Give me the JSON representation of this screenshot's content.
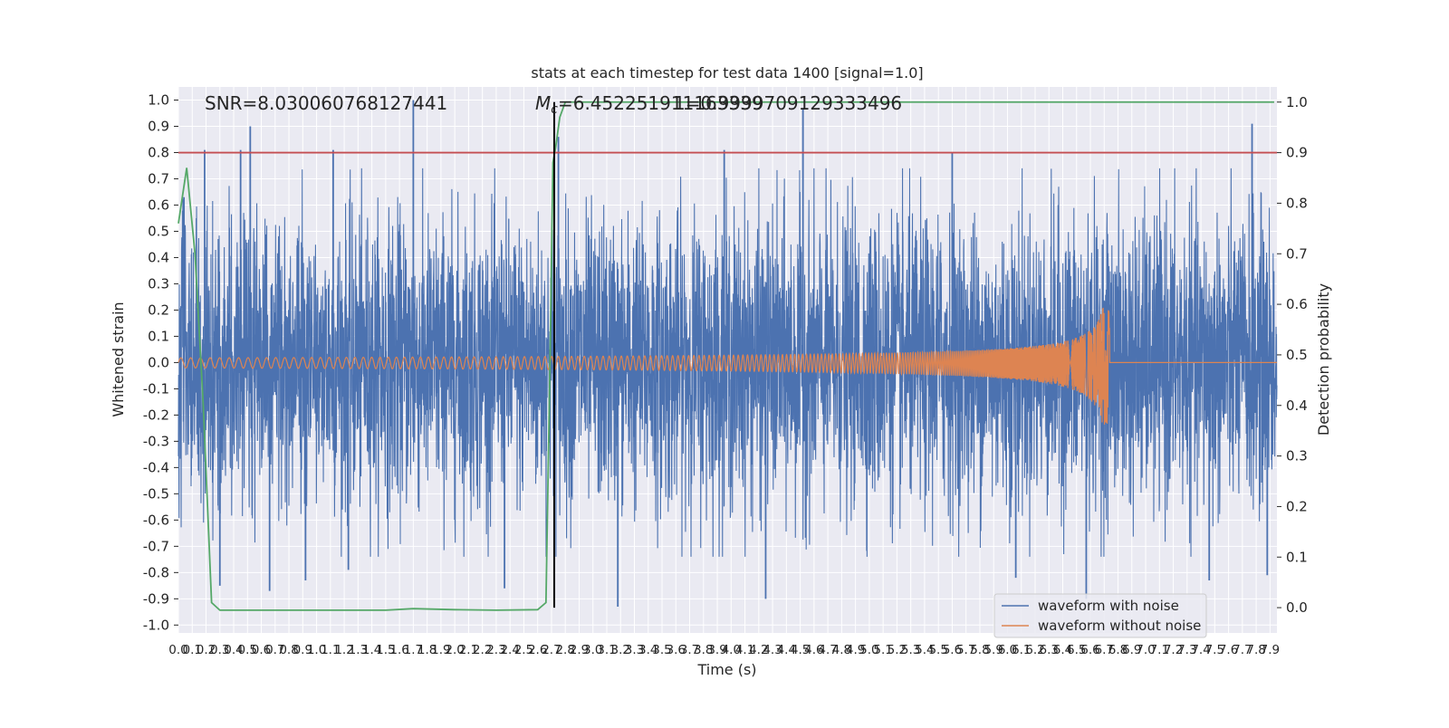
{
  "chart_data": {
    "type": "line",
    "title": "stats at each timestep for test data 1400 [signal=1.0]",
    "xlabel": "Time (s)",
    "ylabel": "Whitened strain",
    "ylabel_right": "Detection probability",
    "xlim": [
      0.0,
      7.95
    ],
    "ylim": [
      -1.03,
      1.05
    ],
    "ylim_right": [
      -0.05,
      1.03
    ],
    "x_ticks": [
      0.0,
      0.1,
      0.2,
      0.3,
      0.4,
      0.5,
      0.6,
      0.7,
      0.8,
      0.9,
      1.0,
      1.1,
      1.2,
      1.3,
      1.4,
      1.5,
      1.6,
      1.7,
      1.8,
      1.9,
      2.0,
      2.1,
      2.2,
      2.3,
      2.4,
      2.5,
      2.6,
      2.7,
      2.8,
      2.9,
      3.0,
      3.1,
      3.2,
      3.3,
      3.4,
      3.5,
      3.6,
      3.7,
      3.8,
      3.9,
      4.0,
      4.1,
      4.2,
      4.3,
      4.4,
      4.5,
      4.6,
      4.7,
      4.8,
      4.9,
      5.0,
      5.1,
      5.2,
      5.3,
      5.4,
      5.5,
      5.6,
      5.7,
      5.8,
      5.9,
      6.0,
      6.1,
      6.2,
      6.3,
      6.4,
      6.5,
      6.6,
      6.7,
      6.8,
      6.9,
      7.0,
      7.1,
      7.2,
      7.3,
      7.4,
      7.5,
      7.6,
      7.7,
      7.8,
      7.9
    ],
    "y_ticks": [
      1.0,
      0.9,
      0.8,
      0.7,
      0.6,
      0.5,
      0.4,
      0.3,
      0.2,
      0.1,
      0.0,
      -0.1,
      -0.2,
      -0.3,
      -0.4,
      -0.5,
      -0.6,
      -0.7,
      -0.8,
      -0.9,
      -1.0
    ],
    "y_ticks_right": [
      1.0,
      0.9,
      0.8,
      0.7,
      0.6,
      0.5,
      0.4,
      0.3,
      0.2,
      0.1,
      0.0
    ],
    "grid": true,
    "annotations": {
      "snr": "SNR=8.030060768127441",
      "mc_prefix": "M",
      "mc_sub": "c",
      "mc_value": "=6.452251911163339",
      "overlap": "1=0.9999709129333496"
    },
    "threshold_right": 0.9,
    "vline_x": 2.72,
    "series": [
      {
        "name": "waveform with noise",
        "axis": "left",
        "color": "#4c72b0",
        "noise_scale": 0.27,
        "peaks": [
          {
            "x": 0.04,
            "y": 0.63
          },
          {
            "x": 0.19,
            "y": 0.81
          },
          {
            "x": 0.3,
            "y": -0.85
          },
          {
            "x": 0.45,
            "y": 0.81
          },
          {
            "x": 0.52,
            "y": 0.9
          },
          {
            "x": 0.66,
            "y": -0.87
          },
          {
            "x": 0.92,
            "y": -0.83
          },
          {
            "x": 1.12,
            "y": 0.81
          },
          {
            "x": 1.23,
            "y": -0.79
          },
          {
            "x": 1.7,
            "y": 1.0
          },
          {
            "x": 2.36,
            "y": -0.86
          },
          {
            "x": 2.75,
            "y": 0.86
          },
          {
            "x": 3.18,
            "y": -0.93
          },
          {
            "x": 3.95,
            "y": 0.81
          },
          {
            "x": 4.25,
            "y": -0.9
          },
          {
            "x": 4.52,
            "y": 0.97
          },
          {
            "x": 5.6,
            "y": 0.8
          },
          {
            "x": 6.06,
            "y": -0.82
          },
          {
            "x": 6.57,
            "y": -0.9
          },
          {
            "x": 7.46,
            "y": -0.83
          },
          {
            "x": 7.77,
            "y": 0.91
          },
          {
            "x": 7.88,
            "y": -0.81
          }
        ]
      },
      {
        "name": "waveform without noise",
        "axis": "left",
        "color": "#dd8452",
        "merger_time": 6.74,
        "peak_amplitude_pos": 0.21,
        "peak_amplitude_neg": -0.25,
        "start_amplitude": 0.018
      },
      {
        "name": "",
        "axis": "right",
        "color": "#55a868",
        "x": [
          0.0,
          0.06,
          0.12,
          0.18,
          0.24,
          0.3,
          0.5,
          1.0,
          1.5,
          1.7,
          2.0,
          2.3,
          2.6,
          2.66,
          2.69,
          2.71,
          2.73,
          2.76,
          2.8,
          2.85,
          3.0,
          4.0,
          5.0,
          6.0,
          7.0,
          7.93
        ],
        "values": [
          0.76,
          0.87,
          0.7,
          0.4,
          0.01,
          -0.005,
          -0.005,
          -0.005,
          -0.005,
          -0.002,
          -0.004,
          -0.005,
          -0.004,
          0.01,
          0.5,
          0.88,
          0.91,
          0.97,
          1.0,
          1.0,
          1.0,
          1.0,
          1.0,
          1.0,
          1.0,
          1.0
        ]
      },
      {
        "name": "",
        "axis": "right",
        "color": "#c44e52",
        "values": [
          0.9,
          0.9
        ]
      }
    ],
    "legend": {
      "placement": "lower-right",
      "entries": [
        "waveform with noise",
        "waveform without noise"
      ]
    }
  }
}
